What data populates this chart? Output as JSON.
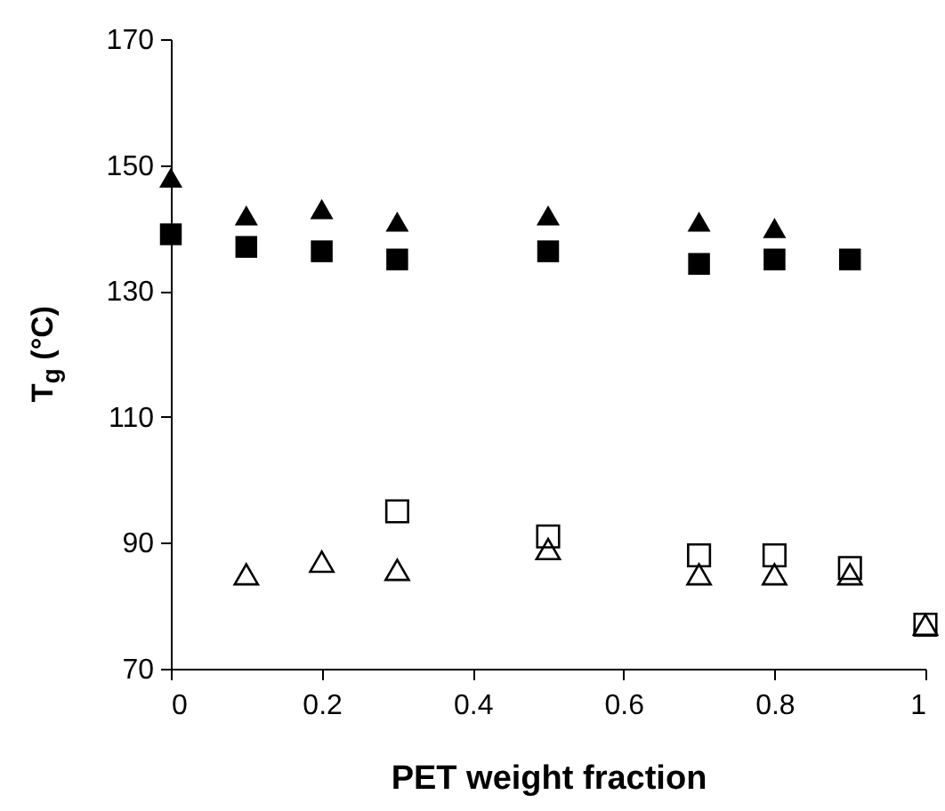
{
  "chart_data": {
    "type": "scatter",
    "xlabel": "PET weight fraction",
    "ylabel": "T$_{g}$ (°C)",
    "xlim": [
      0,
      1
    ],
    "ylim": [
      70,
      170
    ],
    "xticks": [
      0,
      0.2,
      0.4,
      0.6,
      0.8,
      1
    ],
    "yticks": [
      70,
      90,
      110,
      130,
      150,
      170
    ],
    "grid": false,
    "series": [
      {
        "color": "#000000",
        "marker": "triangle",
        "x": [
          0,
          0.1,
          0.2,
          0.3,
          0.5,
          0.7,
          0.8
        ],
        "values": [
          148,
          142,
          143,
          141,
          142,
          141,
          140
        ]
      },
      {
        "color": "#000000",
        "marker": "square",
        "x": [
          0,
          0.1,
          0.2,
          0.3,
          0.5,
          0.7,
          0.8,
          0.9
        ],
        "values": [
          139,
          137,
          136.3,
          135,
          136.3,
          134.3,
          135,
          135
        ]
      },
      {
        "color": "#000000",
        "marker": "square-open",
        "x": [
          0.3,
          0.5,
          0.7,
          0.8,
          0.9,
          1
        ],
        "values": [
          95,
          91,
          88,
          88,
          86,
          77
        ]
      },
      {
        "color": "#000000",
        "marker": "triangle-open",
        "x": [
          0.1,
          0.2,
          0.3,
          0.5,
          0.7,
          0.8,
          0.9,
          1
        ],
        "values": [
          85,
          87,
          85.7,
          89,
          85,
          85,
          85,
          77
        ]
      }
    ]
  }
}
